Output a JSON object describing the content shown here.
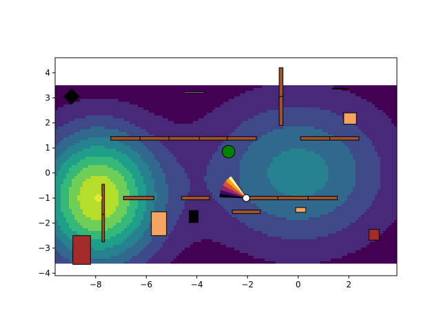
{
  "chart_data": {
    "type": "heatmap",
    "title": "",
    "xlabel": "",
    "ylabel": "",
    "xlim": [
      -9.6,
      3.9
    ],
    "ylim": [
      -4.1,
      4.6
    ],
    "xticks": [
      -8,
      -6,
      -4,
      -2,
      0,
      2
    ],
    "xtick_labels": [
      "−8",
      "−6",
      "−4",
      "−2",
      "0",
      "2"
    ],
    "yticks": [
      -4,
      -3,
      -2,
      -1,
      0,
      1,
      2,
      3,
      4
    ],
    "ytick_labels": [
      "−4",
      "−3",
      "−2",
      "−1",
      "0",
      "1",
      "2",
      "3",
      "4"
    ],
    "field": {
      "extent": {
        "x": [
          -9.6,
          3.9
        ],
        "y": [
          -3.6,
          3.5
        ]
      },
      "sources": [
        {
          "x": -7.9,
          "y": -1.0,
          "amp": 8.0,
          "sx": 1.7,
          "sy": 1.9
        },
        {
          "x": 0.0,
          "y": 0.0,
          "amp": 4.0,
          "sx": 2.6,
          "sy": 2.1
        }
      ],
      "levels": [
        0.9,
        1.8,
        2.7,
        3.6,
        4.5,
        5.4,
        6.3,
        7.2
      ],
      "colors": [
        "#440154",
        "#482878",
        "#3e4989",
        "#31688e",
        "#26828e",
        "#1f9e89",
        "#35b779",
        "#6ece58",
        "#b5de2b"
      ],
      "grid_on": false
    },
    "walls": [
      {
        "x": [
          -7.4,
          -6.25
        ],
        "y": [
          1.31,
          1.45
        ]
      },
      {
        "x": [
          -6.25,
          -5.1
        ],
        "y": [
          1.31,
          1.45
        ]
      },
      {
        "x": [
          -5.1,
          -3.9
        ],
        "y": [
          1.31,
          1.45
        ]
      },
      {
        "x": [
          -3.9,
          -2.8
        ],
        "y": [
          1.31,
          1.45
        ]
      },
      {
        "x": [
          -2.8,
          -1.65
        ],
        "y": [
          1.31,
          1.45
        ]
      },
      {
        "x": [
          0.1,
          1.25
        ],
        "y": [
          1.31,
          1.45
        ]
      },
      {
        "x": [
          1.25,
          2.4
        ],
        "y": [
          1.31,
          1.45
        ]
      },
      {
        "x": [
          -0.75,
          -0.6
        ],
        "y": [
          3.05,
          4.2
        ]
      },
      {
        "x": [
          -0.75,
          -0.6
        ],
        "y": [
          1.9,
          3.05
        ]
      },
      {
        "x": [
          -7.75,
          -7.65
        ],
        "y": [
          -1.65,
          -0.45
        ]
      },
      {
        "x": [
          -7.75,
          -7.65
        ],
        "y": [
          -2.75,
          -1.65
        ]
      },
      {
        "x": [
          -6.9,
          -5.7
        ],
        "y": [
          -1.07,
          -0.93
        ]
      },
      {
        "x": [
          -4.6,
          -3.5
        ],
        "y": [
          -1.07,
          -0.93
        ]
      },
      {
        "x": [
          -2.0,
          -0.8
        ],
        "y": [
          -1.07,
          -0.93
        ]
      },
      {
        "x": [
          -0.8,
          0.4
        ],
        "y": [
          -1.07,
          -0.93
        ]
      },
      {
        "x": [
          0.4,
          1.55
        ],
        "y": [
          -1.07,
          -0.93
        ]
      },
      {
        "x": [
          -2.6,
          -1.5
        ],
        "y": [
          -1.62,
          -1.48
        ]
      }
    ],
    "boxes": [
      {
        "x": [
          1.8,
          2.3
        ],
        "y": [
          1.95,
          2.4
        ],
        "color": "#f4a460"
      },
      {
        "x": [
          -5.8,
          -5.2
        ],
        "y": [
          -2.5,
          -1.55
        ],
        "color": "#f4a460"
      },
      {
        "x": [
          -0.1,
          0.3
        ],
        "y": [
          -1.57,
          -1.38
        ],
        "color": "#f4a460"
      },
      {
        "x": [
          -8.9,
          -8.2
        ],
        "y": [
          -3.65,
          -2.5
        ],
        "color": "#a52a2a"
      },
      {
        "x": [
          2.8,
          3.2
        ],
        "y": [
          -2.68,
          -2.25
        ],
        "color": "#a52a2a"
      },
      {
        "x": [
          -4.3,
          -3.95
        ],
        "y": [
          -1.98,
          -1.5
        ],
        "color": "#000000"
      }
    ],
    "bars": [
      {
        "x": [
          -4.5,
          -3.7
        ],
        "y": [
          3.2,
          3.24
        ],
        "fill": "#ffffff",
        "stroke": "#000000"
      },
      {
        "x": [
          1.35,
          1.95
        ],
        "y": [
          3.35,
          3.38
        ],
        "fill": "#000000",
        "stroke": "#000000"
      }
    ],
    "goal": {
      "x": -8.95,
      "y": 3.05,
      "half": 0.32,
      "color": "#000000"
    },
    "green_disk": {
      "x": -2.75,
      "y": 0.85,
      "r": 0.25,
      "color": "#008000"
    },
    "yellow_dot": {
      "x": -7.9,
      "y": -1.0,
      "r": 0.15,
      "color": "#e6e62e"
    },
    "agent": {
      "x": -2.05,
      "y": -1.0,
      "r": 0.14,
      "color": "#ffffff"
    },
    "sensor_cone": {
      "x": -2.05,
      "y": -1.0,
      "length": 1.05,
      "from_deg": 125,
      "to_deg": 178
    },
    "cone_colors": [
      "#000004",
      "#420a68",
      "#932667",
      "#dd513a",
      "#fca50a",
      "#fcffa4"
    ]
  }
}
